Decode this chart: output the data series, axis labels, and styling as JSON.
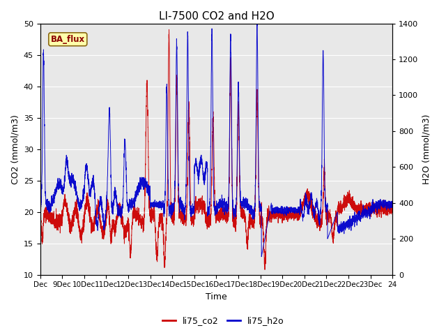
{
  "title": "LI-7500 CO2 and H2O",
  "xlabel": "Time",
  "ylabel_left": "CO2 (mmol/m3)",
  "ylabel_right": "H2O (mmol/m3)",
  "ylim_left": [
    10,
    50
  ],
  "ylim_right": [
    0,
    1400
  ],
  "xtick_labels": [
    "Dec",
    "9Dec",
    "10Dec",
    "11Dec",
    "12Dec",
    "13Dec",
    "14Dec",
    "15Dec",
    "16Dec",
    "17Dec",
    "18Dec",
    "19Dec",
    "20Dec",
    "21Dec",
    "22Dec",
    "23Dec",
    "24"
  ],
  "legend_co2": "li75_co2",
  "legend_h2o": "li75_h2o",
  "color_co2": "#cc0000",
  "color_h2o": "#0000cc",
  "annotation_text": "BA_flux",
  "annotation_bg": "#ffffaa",
  "annotation_border": "#8B6914",
  "background_color": "#e8e8e8",
  "title_fontsize": 11,
  "axis_fontsize": 9,
  "tick_fontsize": 8
}
